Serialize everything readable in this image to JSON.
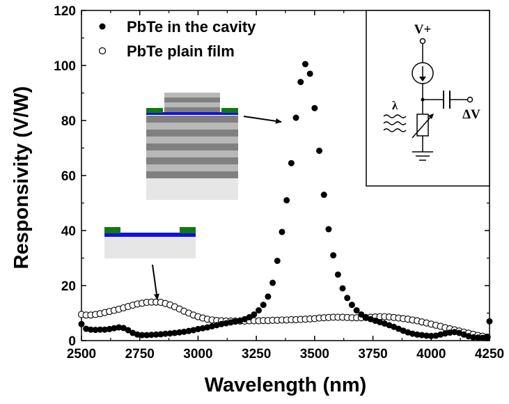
{
  "chart_data": {
    "type": "scatter",
    "xlabel": "Wavelength (nm)",
    "ylabel": "Responsivity (V/W)",
    "xlim": [
      2500,
      4250
    ],
    "ylim": [
      0,
      120
    ],
    "xticks": [
      2500,
      2750,
      3000,
      3250,
      3500,
      3750,
      4000,
      4250
    ],
    "yticks": [
      0,
      20,
      40,
      60,
      80,
      100,
      120
    ],
    "grid": false,
    "legend": "top-left",
    "series": [
      {
        "name": "PbTe in the cavity",
        "marker": "filled-circle",
        "color": "#000000",
        "points": [
          [
            2500,
            6.0
          ],
          [
            2520,
            4.3
          ],
          [
            2540,
            4.0
          ],
          [
            2560,
            3.9
          ],
          [
            2580,
            4.0
          ],
          [
            2600,
            4.0
          ],
          [
            2620,
            4.2
          ],
          [
            2640,
            4.5
          ],
          [
            2660,
            4.8
          ],
          [
            2680,
            4.6
          ],
          [
            2700,
            3.8
          ],
          [
            2720,
            2.8
          ],
          [
            2740,
            2.2
          ],
          [
            2760,
            2.0
          ],
          [
            2780,
            2.0
          ],
          [
            2800,
            2.1
          ],
          [
            2820,
            2.2
          ],
          [
            2840,
            2.3
          ],
          [
            2860,
            2.5
          ],
          [
            2880,
            2.6
          ],
          [
            2900,
            2.8
          ],
          [
            2920,
            3.0
          ],
          [
            2940,
            3.2
          ],
          [
            2960,
            3.5
          ],
          [
            2980,
            3.8
          ],
          [
            3000,
            4.2
          ],
          [
            3020,
            4.5
          ],
          [
            3040,
            4.8
          ],
          [
            3060,
            5.2
          ],
          [
            3080,
            5.6
          ],
          [
            3100,
            6.0
          ],
          [
            3120,
            6.3
          ],
          [
            3140,
            6.6
          ],
          [
            3160,
            6.9
          ],
          [
            3180,
            7.3
          ],
          [
            3200,
            7.8
          ],
          [
            3220,
            8.5
          ],
          [
            3240,
            9.5
          ],
          [
            3260,
            11.0
          ],
          [
            3280,
            13.0
          ],
          [
            3300,
            16.0
          ],
          [
            3320,
            21.0
          ],
          [
            3340,
            29.0
          ],
          [
            3360,
            39.5
          ],
          [
            3380,
            51.0
          ],
          [
            3400,
            64.5
          ],
          [
            3420,
            81.0
          ],
          [
            3440,
            94.0
          ],
          [
            3460,
            100.5
          ],
          [
            3480,
            97.0
          ],
          [
            3500,
            84.5
          ],
          [
            3520,
            69.0
          ],
          [
            3540,
            53.0
          ],
          [
            3560,
            40.5
          ],
          [
            3580,
            31.0
          ],
          [
            3600,
            24.0
          ],
          [
            3620,
            19.0
          ],
          [
            3640,
            15.5
          ],
          [
            3660,
            13.0
          ],
          [
            3680,
            11.0
          ],
          [
            3700,
            9.5
          ],
          [
            3720,
            8.5
          ],
          [
            3740,
            7.8
          ],
          [
            3760,
            7.2
          ],
          [
            3780,
            6.7
          ],
          [
            3800,
            6.2
          ],
          [
            3820,
            5.6
          ],
          [
            3840,
            5.0
          ],
          [
            3860,
            4.3
          ],
          [
            3880,
            3.6
          ],
          [
            3900,
            3.0
          ],
          [
            3920,
            2.5
          ],
          [
            3940,
            2.2
          ],
          [
            3960,
            2.0
          ],
          [
            3980,
            1.8
          ],
          [
            4000,
            1.7
          ],
          [
            4020,
            1.8
          ],
          [
            4040,
            2.2
          ],
          [
            4060,
            2.6
          ],
          [
            4080,
            2.9
          ],
          [
            4100,
            3.1
          ],
          [
            4120,
            2.8
          ],
          [
            4140,
            2.2
          ],
          [
            4160,
            1.6
          ],
          [
            4180,
            1.2
          ],
          [
            4200,
            1.1
          ],
          [
            4220,
            1.0
          ],
          [
            4240,
            1.2
          ],
          [
            4250,
            7.0
          ]
        ]
      },
      {
        "name": "PbTe plain film",
        "marker": "open-circle",
        "color": "#000000",
        "points": [
          [
            2500,
            9.5
          ],
          [
            2520,
            9.3
          ],
          [
            2540,
            9.3
          ],
          [
            2560,
            9.5
          ],
          [
            2580,
            9.8
          ],
          [
            2600,
            10.2
          ],
          [
            2620,
            10.6
          ],
          [
            2640,
            11.0
          ],
          [
            2660,
            11.4
          ],
          [
            2680,
            11.9
          ],
          [
            2700,
            12.4
          ],
          [
            2720,
            12.9
          ],
          [
            2740,
            13.3
          ],
          [
            2760,
            13.6
          ],
          [
            2780,
            13.9
          ],
          [
            2800,
            14.0
          ],
          [
            2820,
            14.0
          ],
          [
            2840,
            13.9
          ],
          [
            2860,
            13.5
          ],
          [
            2880,
            13.0
          ],
          [
            2900,
            12.3
          ],
          [
            2920,
            11.5
          ],
          [
            2940,
            10.7
          ],
          [
            2960,
            10.0
          ],
          [
            2980,
            9.3
          ],
          [
            3000,
            8.7
          ],
          [
            3020,
            8.2
          ],
          [
            3040,
            7.8
          ],
          [
            3060,
            7.5
          ],
          [
            3080,
            7.3
          ],
          [
            3100,
            7.2
          ],
          [
            3120,
            7.1
          ],
          [
            3140,
            7.1
          ],
          [
            3160,
            7.1
          ],
          [
            3180,
            7.1
          ],
          [
            3200,
            7.1
          ],
          [
            3220,
            7.2
          ],
          [
            3240,
            7.2
          ],
          [
            3260,
            7.2
          ],
          [
            3280,
            7.3
          ],
          [
            3300,
            7.3
          ],
          [
            3320,
            7.4
          ],
          [
            3340,
            7.4
          ],
          [
            3360,
            7.5
          ],
          [
            3380,
            7.5
          ],
          [
            3400,
            7.6
          ],
          [
            3420,
            7.6
          ],
          [
            3440,
            7.7
          ],
          [
            3460,
            7.8
          ],
          [
            3480,
            7.9
          ],
          [
            3500,
            8.0
          ],
          [
            3520,
            8.2
          ],
          [
            3540,
            8.3
          ],
          [
            3560,
            8.4
          ],
          [
            3580,
            8.5
          ],
          [
            3600,
            8.5
          ],
          [
            3620,
            8.5
          ],
          [
            3640,
            8.4
          ],
          [
            3660,
            8.3
          ],
          [
            3680,
            8.3
          ],
          [
            3700,
            8.3
          ],
          [
            3720,
            8.4
          ],
          [
            3740,
            8.5
          ],
          [
            3760,
            8.6
          ],
          [
            3780,
            8.7
          ],
          [
            3800,
            8.7
          ],
          [
            3820,
            8.6
          ],
          [
            3840,
            8.4
          ],
          [
            3860,
            8.2
          ],
          [
            3880,
            8.0
          ],
          [
            3900,
            7.8
          ],
          [
            3920,
            7.5
          ],
          [
            3940,
            7.2
          ],
          [
            3960,
            6.8
          ],
          [
            3980,
            6.4
          ],
          [
            4000,
            6.0
          ],
          [
            4020,
            5.6
          ],
          [
            4040,
            5.2
          ],
          [
            4060,
            4.7
          ],
          [
            4080,
            4.3
          ],
          [
            4100,
            3.9
          ],
          [
            4120,
            3.5
          ],
          [
            4140,
            3.1
          ],
          [
            4160,
            2.7
          ],
          [
            4180,
            2.3
          ],
          [
            4200,
            1.9
          ],
          [
            4220,
            1.6
          ],
          [
            4240,
            1.3
          ]
        ]
      }
    ]
  },
  "inset_circuit": {
    "supply_label": "V+",
    "light_label": "λ",
    "output_label": "ΔV"
  },
  "colors": {
    "contact": "#0f7a12",
    "pbte_layer": "#1010e0",
    "dark_layer": "#808080",
    "light_layer": "#b8b8b8",
    "substrate": "#e6e6e6"
  }
}
